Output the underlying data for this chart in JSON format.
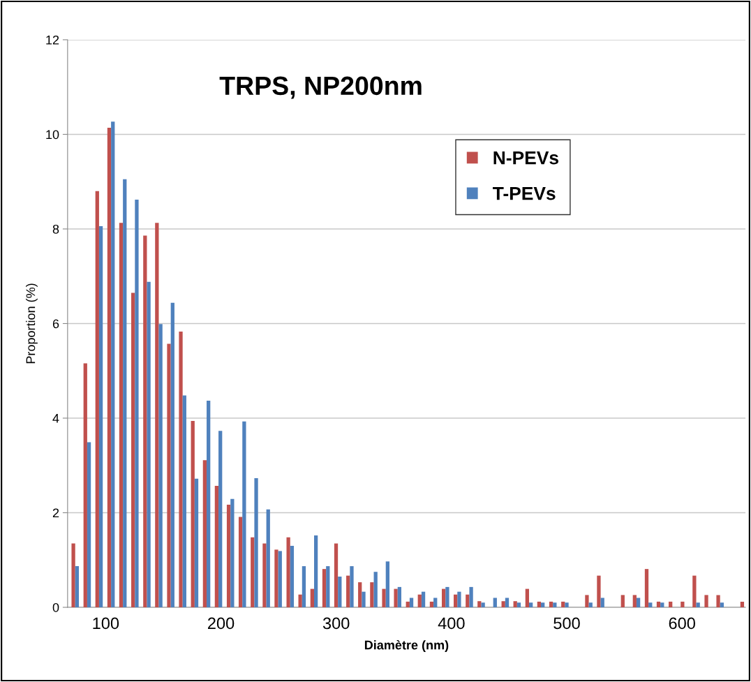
{
  "chart_data": {
    "type": "bar",
    "title": "TRPS, NP200nm",
    "xlabel": "Diamètre (nm)",
    "ylabel": "Proportion (%)",
    "x": [
      73.6,
      84.0,
      94.3,
      104.7,
      115.0,
      125.4,
      135.8,
      146.1,
      156.5,
      166.8,
      177.2,
      187.6,
      197.9,
      208.3,
      218.6,
      229.0,
      239.4,
      249.7,
      260.1,
      270.4,
      280.8,
      291.2,
      301.5,
      311.9,
      322.2,
      332.6,
      343.0,
      353.3,
      363.7,
      374.0,
      384.4,
      394.8,
      405.1,
      415.5,
      425.8,
      436.2,
      446.6,
      456.9,
      467.3,
      477.6,
      488.0,
      498.4,
      508.7,
      519.1,
      529.4,
      539.8,
      550.2,
      560.5,
      570.9,
      581.2,
      591.6,
      602.0,
      612.3,
      622.7,
      633.0,
      643.4,
      653.8
    ],
    "series": [
      {
        "name": "N-PEVs",
        "color": "#c0504d",
        "values": [
          1.35,
          5.16,
          8.8,
          10.14,
          8.13,
          6.65,
          7.86,
          8.13,
          5.57,
          5.83,
          3.94,
          3.11,
          2.57,
          2.17,
          1.91,
          1.48,
          1.35,
          1.22,
          1.48,
          0.27,
          0.39,
          0.81,
          1.35,
          0.67,
          0.53,
          0.53,
          0.39,
          0.39,
          0.12,
          0.27,
          0.12,
          0.39,
          0.27,
          0.27,
          0.13,
          null,
          0.13,
          0.13,
          0.39,
          0.12,
          0.12,
          0.12,
          null,
          0.26,
          0.67,
          null,
          0.26,
          0.26,
          0.81,
          0.12,
          0.12,
          0.12,
          0.67,
          0.26,
          0.26,
          null,
          0.12
        ]
      },
      {
        "name": "T-PEVs",
        "color": "#4f81bd",
        "values": [
          0.87,
          3.49,
          8.06,
          10.27,
          9.05,
          8.62,
          6.88,
          5.99,
          6.44,
          4.48,
          2.72,
          4.37,
          3.73,
          2.29,
          3.93,
          2.73,
          2.07,
          1.19,
          1.3,
          0.87,
          1.52,
          0.87,
          0.65,
          0.87,
          0.33,
          0.75,
          0.97,
          0.43,
          0.2,
          0.33,
          0.2,
          0.43,
          0.33,
          0.43,
          0.1,
          0.2,
          0.2,
          0.1,
          0.1,
          0.1,
          0.1,
          0.1,
          null,
          0.1,
          0.2,
          null,
          null,
          0.2,
          0.1,
          0.1,
          null,
          null,
          0.1,
          null,
          0.1,
          null,
          null
        ]
      }
    ],
    "xlim": [
      67,
      655
    ],
    "xticks": [
      100,
      200,
      300,
      400,
      500,
      600
    ],
    "ylim": [
      0,
      12
    ],
    "yticks": [
      0,
      2,
      4,
      6,
      8,
      10,
      12
    ],
    "grid": "y",
    "legend": "top right"
  }
}
